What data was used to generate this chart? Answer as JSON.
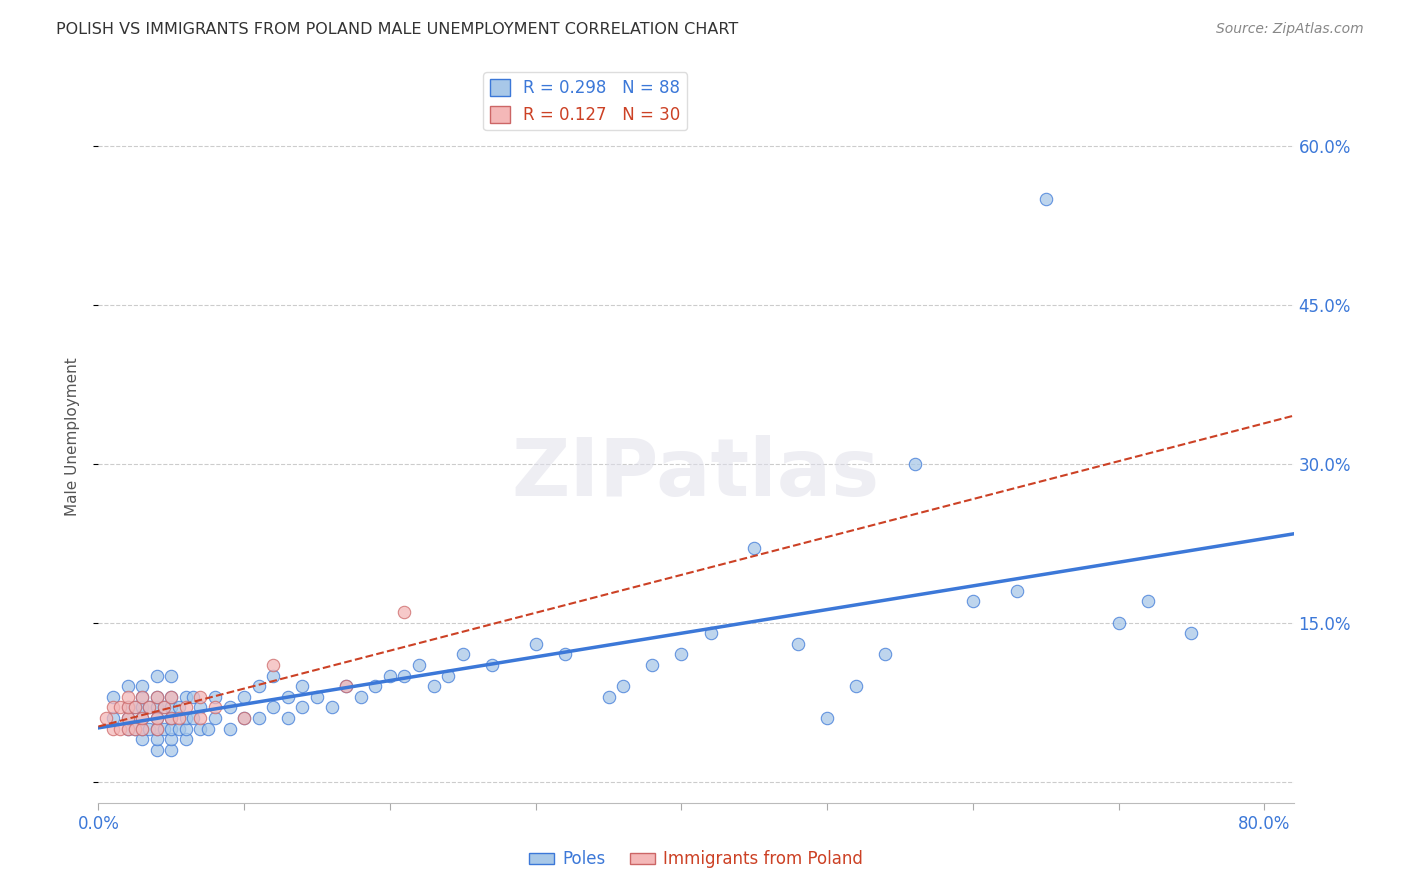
{
  "title": "POLISH VS IMMIGRANTS FROM POLAND MALE UNEMPLOYMENT CORRELATION CHART",
  "source": "Source: ZipAtlas.com",
  "ylabel": "Male Unemployment",
  "R_poles": 0.298,
  "N_poles": 88,
  "R_immigrants": 0.127,
  "N_immigrants": 30,
  "xlim": [
    0.0,
    0.82
  ],
  "ylim": [
    -0.02,
    0.67
  ],
  "yticks": [
    0.0,
    0.15,
    0.3,
    0.45,
    0.6
  ],
  "ytick_labels": [
    "",
    "15.0%",
    "30.0%",
    "45.0%",
    "60.0%"
  ],
  "xticks": [
    0.0,
    0.1,
    0.2,
    0.3,
    0.4,
    0.5,
    0.6,
    0.7,
    0.8
  ],
  "color_poles_fill": "#a8c8e8",
  "color_poles_edge": "#3c78d8",
  "color_immigrants_fill": "#f4b8b8",
  "color_immigrants_edge": "#cc6666",
  "color_poles_line": "#3c78d8",
  "color_immigrants_line": "#cc4125",
  "background_color": "#ffffff",
  "poles_x": [
    0.01,
    0.01,
    0.02,
    0.02,
    0.02,
    0.02,
    0.025,
    0.025,
    0.03,
    0.03,
    0.03,
    0.03,
    0.03,
    0.03,
    0.035,
    0.035,
    0.04,
    0.04,
    0.04,
    0.04,
    0.04,
    0.04,
    0.04,
    0.045,
    0.045,
    0.05,
    0.05,
    0.05,
    0.05,
    0.05,
    0.05,
    0.05,
    0.055,
    0.055,
    0.06,
    0.06,
    0.06,
    0.06,
    0.065,
    0.065,
    0.07,
    0.07,
    0.075,
    0.08,
    0.08,
    0.09,
    0.09,
    0.1,
    0.1,
    0.11,
    0.11,
    0.12,
    0.12,
    0.13,
    0.13,
    0.14,
    0.14,
    0.15,
    0.16,
    0.17,
    0.18,
    0.19,
    0.2,
    0.21,
    0.22,
    0.23,
    0.24,
    0.25,
    0.27,
    0.3,
    0.32,
    0.35,
    0.36,
    0.38,
    0.4,
    0.42,
    0.45,
    0.48,
    0.5,
    0.52,
    0.54,
    0.56,
    0.6,
    0.63,
    0.65,
    0.7,
    0.72,
    0.75
  ],
  "poles_y": [
    0.06,
    0.08,
    0.05,
    0.06,
    0.07,
    0.09,
    0.05,
    0.07,
    0.04,
    0.05,
    0.06,
    0.07,
    0.08,
    0.09,
    0.05,
    0.07,
    0.03,
    0.04,
    0.05,
    0.06,
    0.07,
    0.08,
    0.1,
    0.05,
    0.07,
    0.03,
    0.04,
    0.05,
    0.06,
    0.07,
    0.08,
    0.1,
    0.05,
    0.07,
    0.04,
    0.05,
    0.06,
    0.08,
    0.06,
    0.08,
    0.05,
    0.07,
    0.05,
    0.06,
    0.08,
    0.05,
    0.07,
    0.06,
    0.08,
    0.06,
    0.09,
    0.07,
    0.1,
    0.06,
    0.08,
    0.07,
    0.09,
    0.08,
    0.07,
    0.09,
    0.08,
    0.09,
    0.1,
    0.1,
    0.11,
    0.09,
    0.1,
    0.12,
    0.11,
    0.13,
    0.12,
    0.08,
    0.09,
    0.11,
    0.12,
    0.14,
    0.22,
    0.13,
    0.06,
    0.09,
    0.12,
    0.3,
    0.17,
    0.18,
    0.55,
    0.15,
    0.17,
    0.14
  ],
  "immigrants_x": [
    0.005,
    0.01,
    0.01,
    0.015,
    0.015,
    0.02,
    0.02,
    0.02,
    0.02,
    0.025,
    0.025,
    0.03,
    0.03,
    0.03,
    0.035,
    0.04,
    0.04,
    0.04,
    0.045,
    0.05,
    0.05,
    0.055,
    0.06,
    0.07,
    0.07,
    0.08,
    0.1,
    0.12,
    0.17,
    0.21
  ],
  "immigrants_y": [
    0.06,
    0.05,
    0.07,
    0.05,
    0.07,
    0.05,
    0.06,
    0.07,
    0.08,
    0.05,
    0.07,
    0.05,
    0.06,
    0.08,
    0.07,
    0.05,
    0.06,
    0.08,
    0.07,
    0.06,
    0.08,
    0.06,
    0.07,
    0.06,
    0.08,
    0.07,
    0.06,
    0.11,
    0.09,
    0.16
  ]
}
